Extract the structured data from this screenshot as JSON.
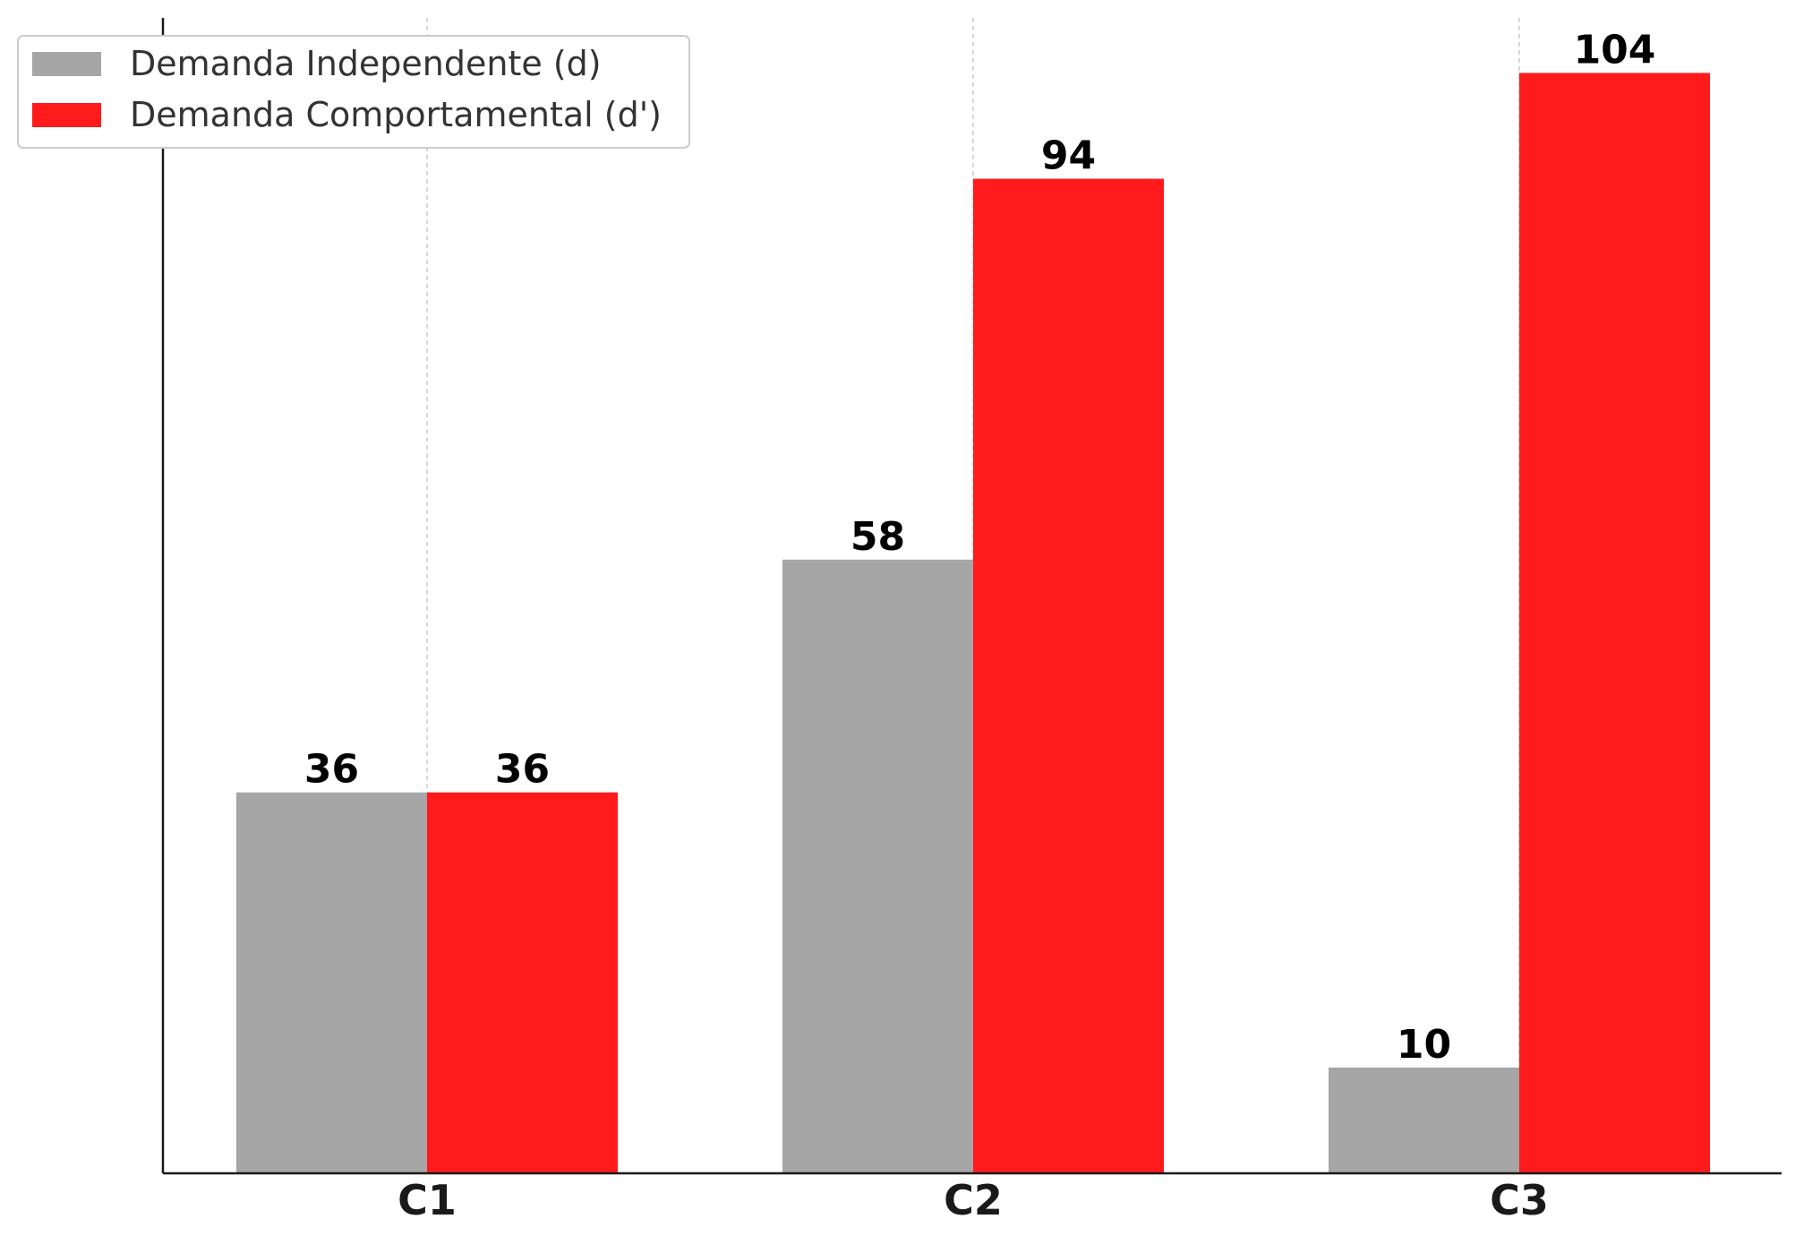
{
  "chart_data": {
    "type": "bar",
    "categories": [
      "C1",
      "C2",
      "C3"
    ],
    "series": [
      {
        "name": "Demanda Independente (d)",
        "values": [
          36,
          58,
          10
        ],
        "color": "#a6a6a6"
      },
      {
        "name": "Demanda Comportamental (d')",
        "values": [
          36,
          94,
          104
        ],
        "color": "#ff1a1c"
      }
    ],
    "title": "",
    "xlabel": "",
    "ylabel": "",
    "ylim": [
      0,
      109.2
    ],
    "grid": {
      "x": true,
      "y": false,
      "color": "#cccccc",
      "style": "dashed"
    },
    "legend_position": "top-left",
    "data_labels": true
  }
}
